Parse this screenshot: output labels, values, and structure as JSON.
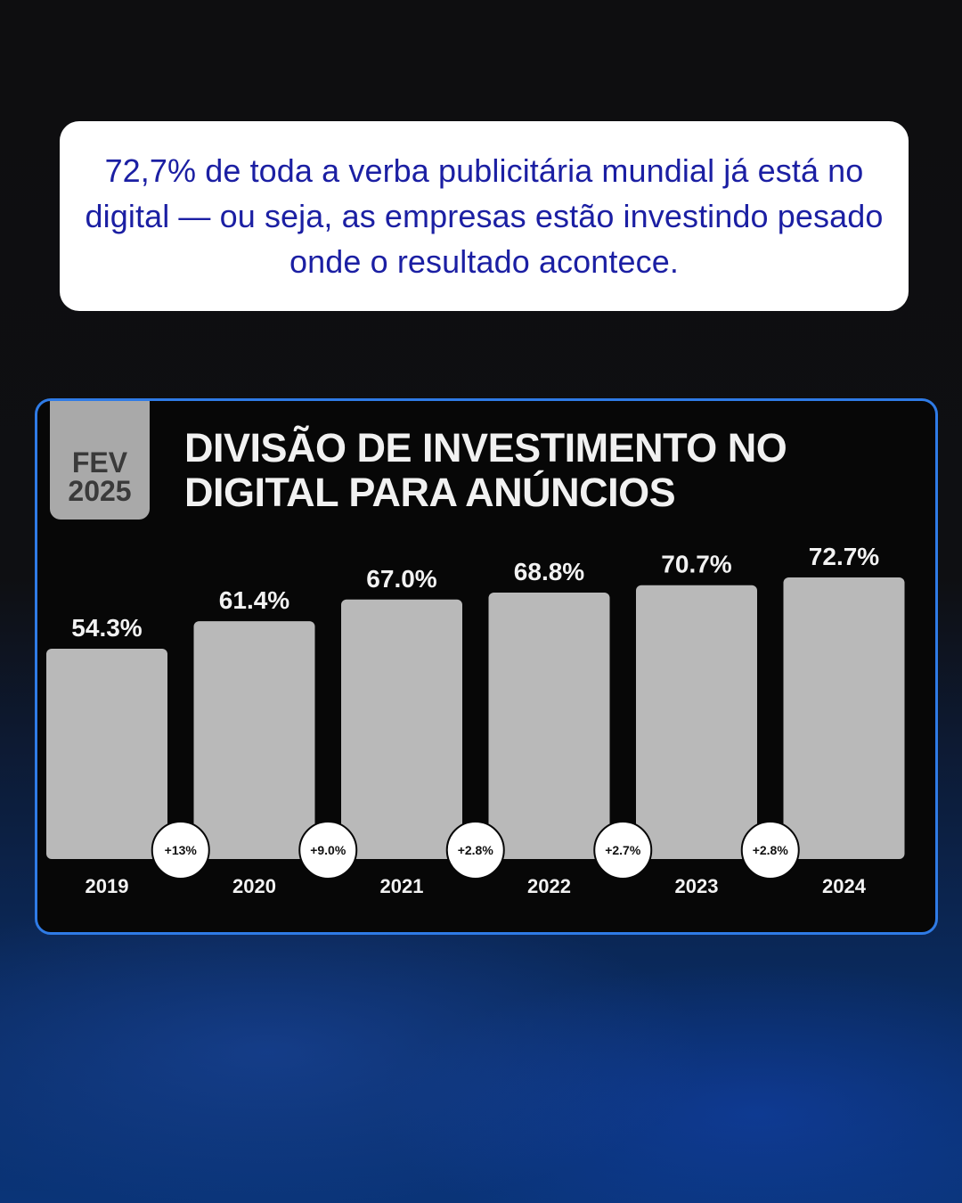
{
  "intro": {
    "text": "72,7% de toda a verba publicitária mundial já está no digital — ou seja, as empresas estão investindo pesado onde o resultado acontece."
  },
  "chart": {
    "badge_month": "FEV",
    "badge_year": "2025",
    "title": "DIVISÃO DE INVESTIMENTO NO DIGITAL PARA ANÚNCIOS"
  },
  "chart_data": {
    "type": "bar",
    "title": "DIVISÃO DE INVESTIMENTO NO DIGITAL PARA ANÚNCIOS",
    "categories": [
      "2019",
      "2020",
      "2021",
      "2022",
      "2023",
      "2024"
    ],
    "values": [
      54.3,
      61.4,
      67.0,
      68.8,
      70.7,
      72.7
    ],
    "value_labels": [
      "54.3%",
      "61.4%",
      "67.0%",
      "68.8%",
      "70.7%",
      "72.7%"
    ],
    "growth_labels": [
      "+13%",
      "+9.0%",
      "+2.8%",
      "+2.7%",
      "+2.8%"
    ],
    "xlabel": "",
    "ylabel": "",
    "grid": false,
    "legend": "none",
    "colors": {
      "bar": "#b9b9b9",
      "label": "#f2f2f2",
      "badge_fill": "#ffffff",
      "badge_text": "#111111",
      "frame": "#2f7be6"
    }
  }
}
